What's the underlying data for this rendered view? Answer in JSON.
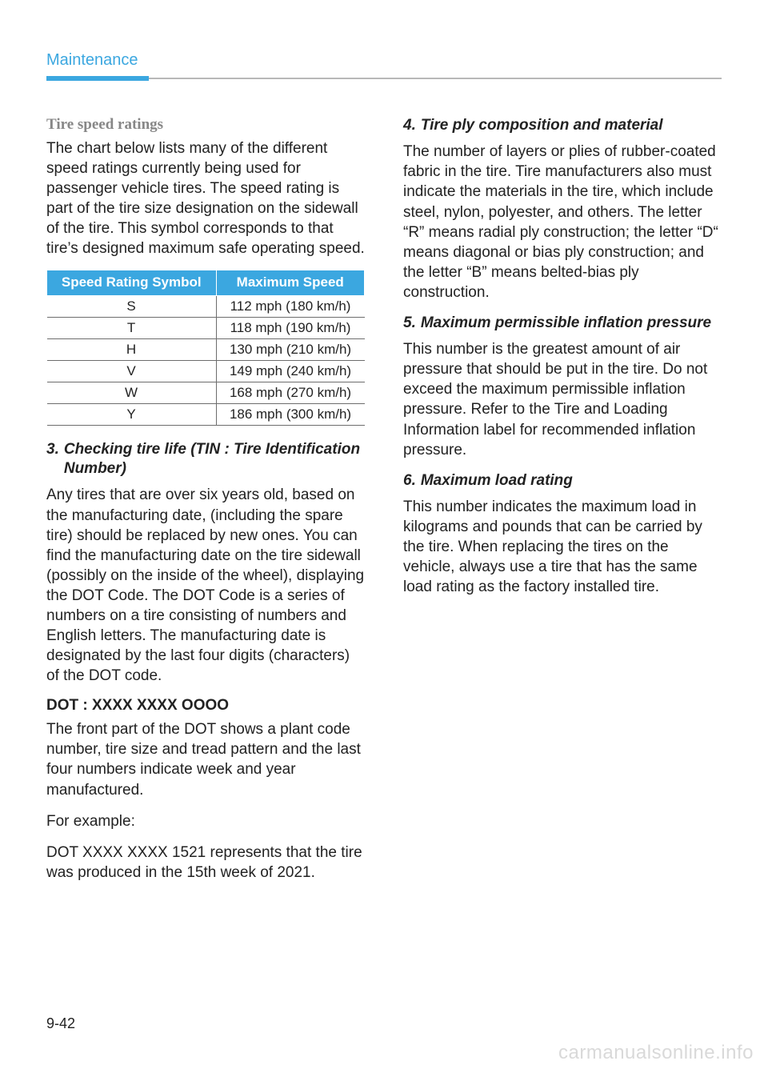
{
  "header": "Maintenance",
  "page_number": "9-42",
  "watermark": "carmanualsonline.info",
  "left": {
    "sub1_title": "Tire speed ratings",
    "sub1_body": "The chart below lists many of the different speed ratings currently being used for passenger vehicle tires. The speed rating is part of the tire size designation on the sidewall of the tire. This symbol corresponds to that tire’s designed maximum safe operating speed.",
    "table": {
      "header_col1": "Speed Rating Symbol",
      "header_col2": "Maximum Speed",
      "rows": [
        {
          "sym": "S",
          "spd": "112 mph (180 km/h)"
        },
        {
          "sym": "T",
          "spd": "118 mph (190 km/h)"
        },
        {
          "sym": "H",
          "spd": "130 mph (210 km/h)"
        },
        {
          "sym": "V",
          "spd": "149 mph (240 km/h)"
        },
        {
          "sym": "W",
          "spd": "168 mph (270 km/h)"
        },
        {
          "sym": "Y",
          "spd": "186 mph (300 km/h)"
        }
      ]
    },
    "item3_num": "3.",
    "item3_title": "Checking tire life (TIN : Tire Identification Number)",
    "item3_body": "Any tires that are over six years old, based on the manufacturing date, (including the spare tire) should be replaced by new ones. You can find the manufacturing date on the tire sidewall (possibly on the inside of the wheel), displaying the DOT Code. The DOT Code is a series of numbers on a tire consisting of numbers and English letters. The manufacturing date is designated by the last four digits (characters) of the DOT code.",
    "dot_head": "DOT : XXXX XXXX OOOO",
    "dot_body1": "The front part of the DOT shows a plant code number, tire size and tread pattern and the last four numbers indicate week and year manufactured.",
    "dot_body2": "For example:",
    "dot_body3": "DOT XXXX XXXX 1521 represents that the tire was produced in the 15th week of 2021."
  },
  "right": {
    "item4_num": "4.",
    "item4_title": "Tire ply composition and material",
    "item4_body": "The number of layers or plies of rubber-coated fabric in the tire. Tire manufacturers also must indicate the materials in the tire, which include steel, nylon, polyester, and others. The letter “R” means radial ply construction; the letter “D“ means diagonal or bias ply construction; and the letter “B” means belted-bias ply construction.",
    "item5_num": "5.",
    "item5_title": "Maximum permissible inflation pressure",
    "item5_body": "This number is the greatest amount of air pressure that should be put in the tire. Do not exceed the maximum permissible inflation pressure. Refer to the Tire and Loading Information label for recommended inflation pressure.",
    "item6_num": "6.",
    "item6_title": "Maximum load rating",
    "item6_body": "This number indicates the maximum load in kilograms and pounds that can be carried by the tire. When replacing the tires on the vehicle, always use a tire that has the same load rating as the factory installed tire."
  },
  "style": {
    "accent": "#3ba7e0",
    "text": "#222222",
    "gray": "#878787",
    "rule": "#6d6d6d",
    "watermark_color": "#d9d9d9"
  }
}
